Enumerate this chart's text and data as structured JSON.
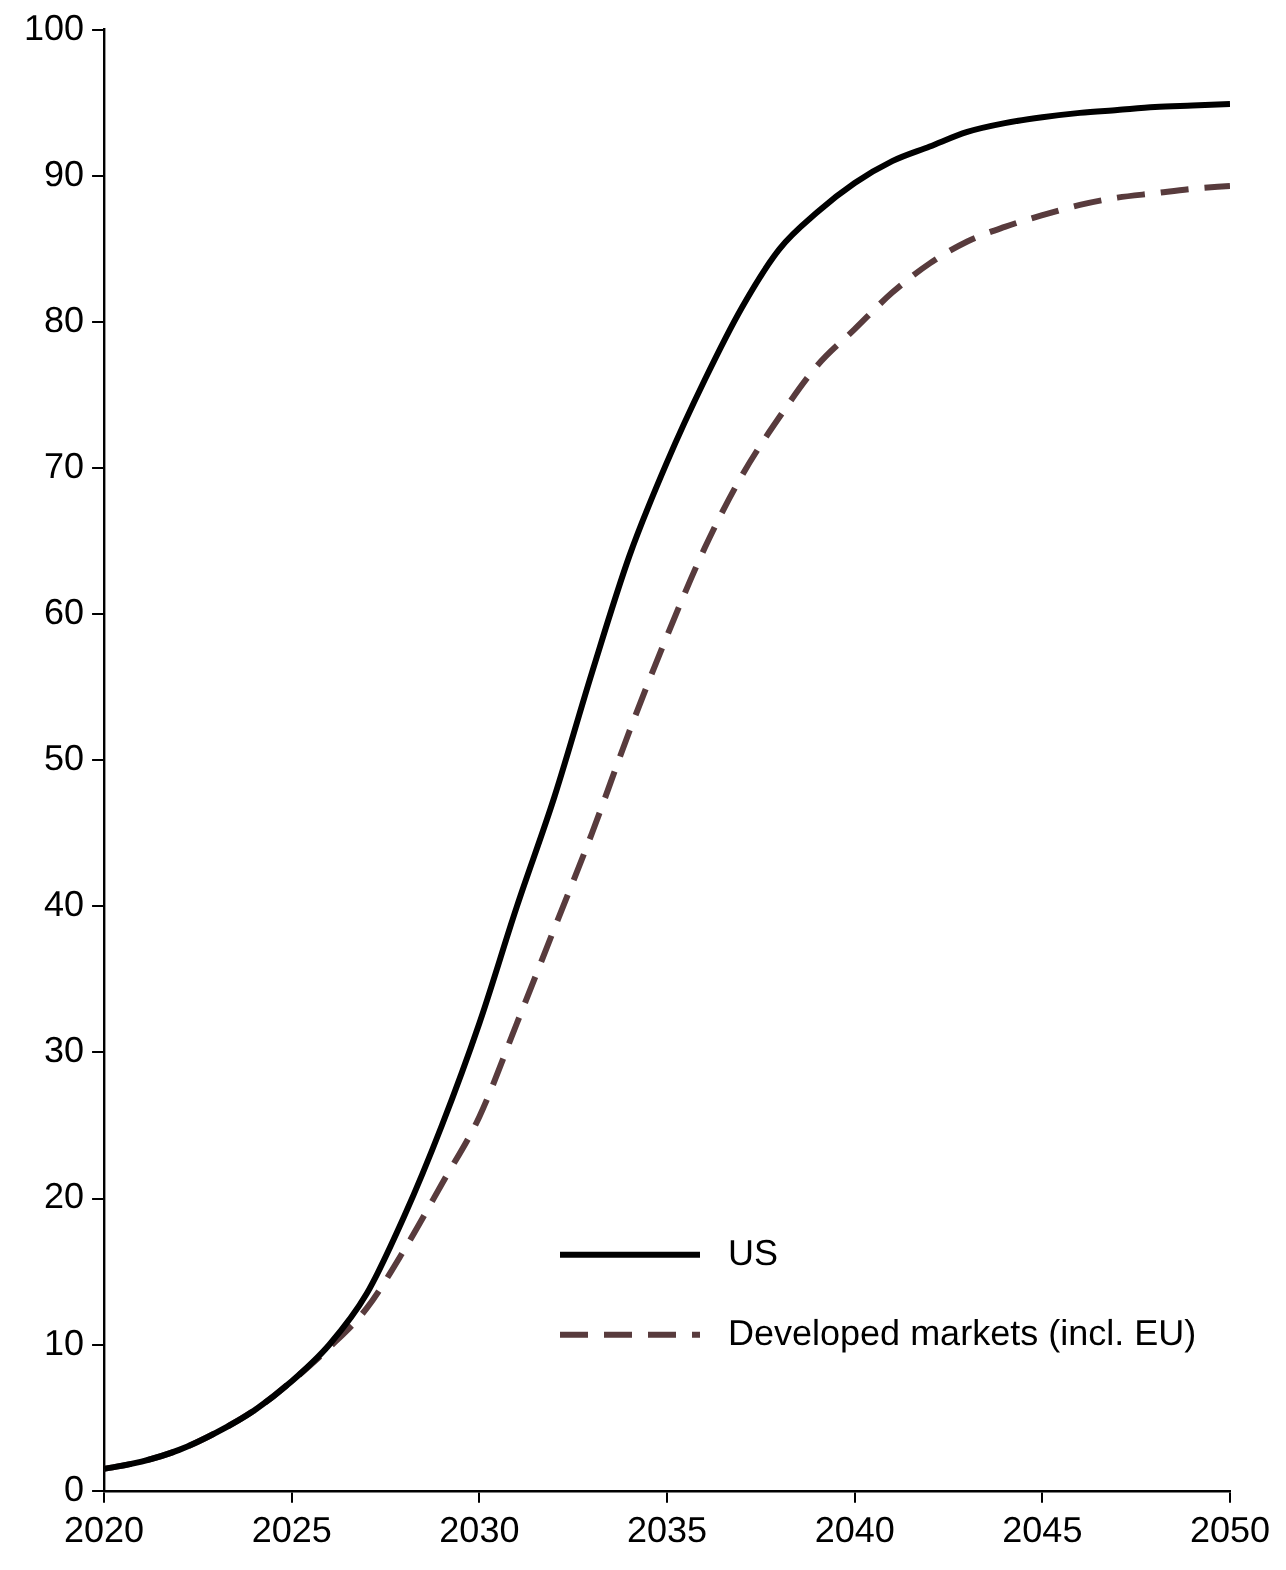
{
  "chart_data": {
    "type": "line",
    "x": [
      2020,
      2021,
      2022,
      2023,
      2024,
      2025,
      2026,
      2027,
      2028,
      2029,
      2030,
      2031,
      2032,
      2033,
      2034,
      2035,
      2036,
      2037,
      2038,
      2039,
      2040,
      2041,
      2042,
      2043,
      2044,
      2045,
      2046,
      2047,
      2048,
      2049,
      2050
    ],
    "series": [
      {
        "name": "US",
        "color": "#000000",
        "line_style": "solid",
        "values": [
          1.5,
          2.0,
          2.8,
          4.0,
          5.5,
          7.5,
          10,
          13.5,
          18.8,
          25,
          32,
          40,
          47.5,
          56,
          64,
          70.4,
          76,
          81,
          85,
          87.5,
          89.5,
          91,
          92,
          93,
          93.6,
          94,
          94.3,
          94.5,
          94.7,
          94.8,
          94.9
        ]
      },
      {
        "name": "Developed markets (incl. EU)",
        "color": "#583b3d",
        "line_style": "dashed",
        "values": [
          1.5,
          2.0,
          2.8,
          4.0,
          5.5,
          7.5,
          9.8,
          12.5,
          16.5,
          21,
          25.6,
          32,
          38.5,
          45,
          52,
          58.5,
          64.5,
          69.5,
          73.5,
          77,
          79.5,
          82,
          84,
          85.5,
          86.5,
          87.3,
          88,
          88.5,
          88.8,
          89.1,
          89.3
        ]
      }
    ],
    "xlim": [
      2020,
      2050
    ],
    "xticks": [
      2020,
      2025,
      2030,
      2035,
      2040,
      2045,
      2050
    ],
    "ylim": [
      0,
      100
    ],
    "yticks": [
      0,
      10,
      20,
      30,
      40,
      50,
      60,
      70,
      80,
      90,
      100
    ],
    "grid": false,
    "legend": "bottom right",
    "marker": "none"
  }
}
